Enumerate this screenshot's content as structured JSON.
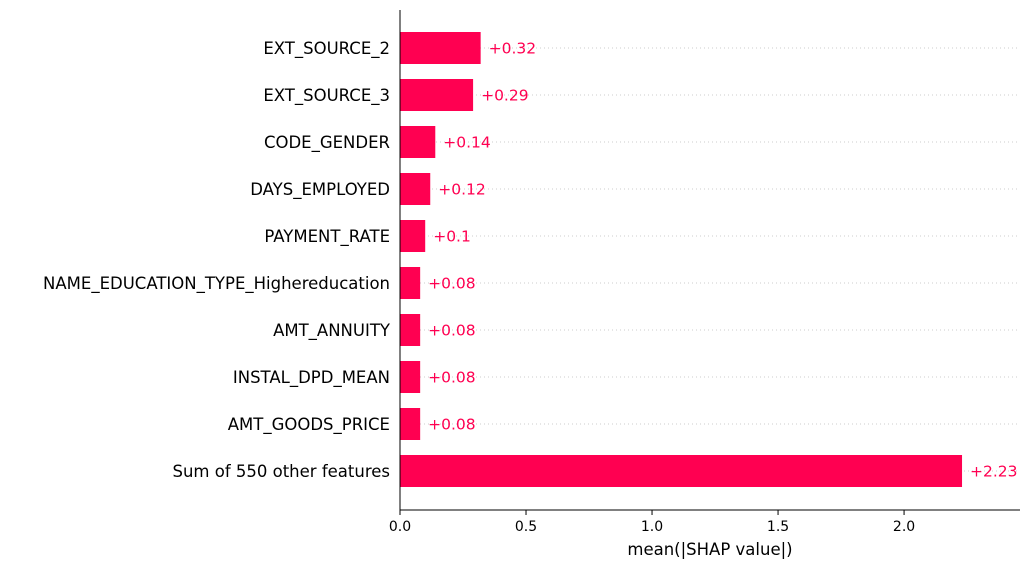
{
  "chart_data": {
    "type": "bar",
    "orientation": "horizontal",
    "categories": [
      "EXT_SOURCE_2",
      "EXT_SOURCE_3",
      "CODE_GENDER",
      "DAYS_EMPLOYED",
      "PAYMENT_RATE",
      "NAME_EDUCATION_TYPE_Highereducation",
      "AMT_ANNUITY",
      "INSTAL_DPD_MEAN",
      "AMT_GOODS_PRICE",
      "Sum of 550 other features"
    ],
    "values": [
      0.32,
      0.29,
      0.14,
      0.12,
      0.1,
      0.08,
      0.08,
      0.08,
      0.08,
      2.23
    ],
    "value_labels": [
      "+0.32",
      "+0.29",
      "+0.14",
      "+0.12",
      "+0.1",
      "+0.08",
      "+0.08",
      "+0.08",
      "+0.08",
      "+2.23"
    ],
    "xlabel": "mean(|SHAP value|)",
    "ylabel": "",
    "title": "",
    "xlim": [
      0,
      2.46
    ],
    "xticks": [
      0.0,
      0.5,
      1.0,
      1.5,
      2.0
    ],
    "xtick_labels": [
      "0.0",
      "0.5",
      "1.0",
      "1.5",
      "2.0"
    ],
    "grid": "dotted horizontal guide lines per row",
    "legend": "none",
    "bar_color": "#ff0051",
    "value_label_color": "#ff0051"
  }
}
